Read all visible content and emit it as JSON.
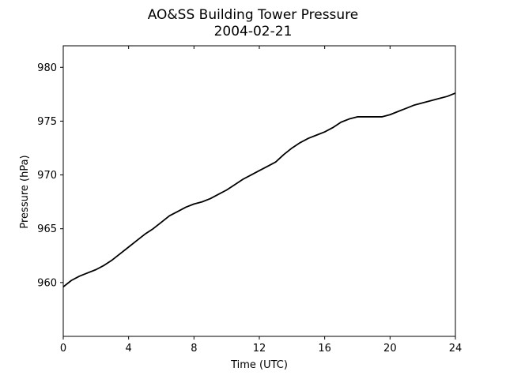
{
  "chart_data": {
    "type": "line",
    "title": "AO&SS Building Tower Pressure",
    "subtitle": "2004-02-21",
    "xlabel": "Time (UTC)",
    "ylabel": "Pressure (hPa)",
    "xlim": [
      0,
      24
    ],
    "ylim": [
      955,
      982
    ],
    "xticks": [
      0,
      4,
      8,
      12,
      16,
      20,
      24
    ],
    "yticks": [
      960,
      965,
      970,
      975,
      980
    ],
    "grid": false,
    "legend": "none",
    "series": [
      {
        "color": "#000000",
        "x": [
          0,
          0.5,
          1,
          1.5,
          2,
          2.5,
          3,
          3.5,
          4,
          4.5,
          5,
          5.5,
          6,
          6.5,
          7,
          7.5,
          8,
          8.5,
          9,
          9.5,
          10,
          10.5,
          11,
          11.5,
          12,
          12.5,
          13,
          13.5,
          14,
          14.5,
          15,
          15.5,
          16,
          16.5,
          17,
          17.5,
          18,
          18.5,
          19,
          19.5,
          20,
          20.5,
          21,
          21.5,
          22,
          22.5,
          23,
          23.5,
          24
        ],
        "y": [
          959.6,
          960.2,
          960.6,
          960.9,
          961.2,
          961.6,
          962.1,
          962.7,
          963.3,
          963.9,
          964.5,
          965.0,
          965.6,
          966.2,
          966.6,
          967.0,
          967.3,
          967.5,
          967.8,
          968.2,
          968.6,
          969.1,
          969.6,
          970.0,
          970.4,
          970.8,
          971.2,
          971.9,
          972.5,
          973.0,
          973.4,
          973.7,
          974.0,
          974.4,
          974.9,
          975.2,
          975.4,
          975.4,
          975.4,
          975.4,
          975.6,
          975.9,
          976.2,
          976.5,
          976.7,
          976.9,
          977.1,
          977.3,
          977.6
        ]
      }
    ]
  }
}
